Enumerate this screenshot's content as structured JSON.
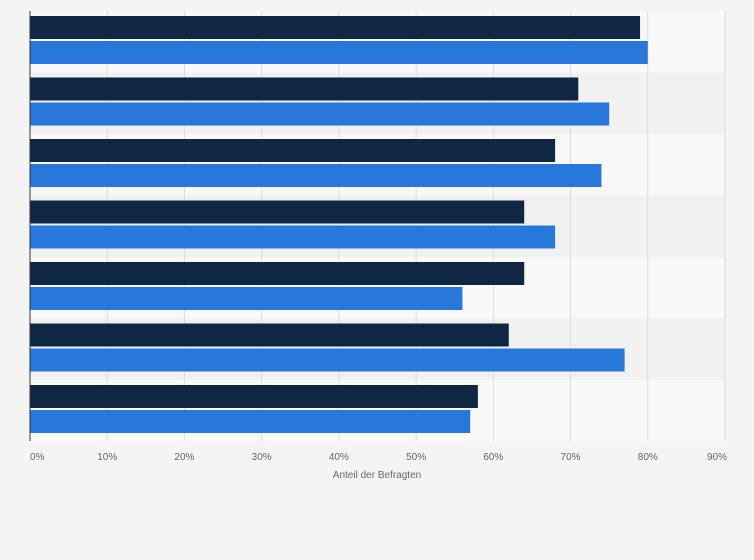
{
  "chart_data": {
    "type": "bar",
    "orientation": "horizontal",
    "categories": [
      "",
      "",
      "",
      "",
      "",
      "",
      ""
    ],
    "series": [
      {
        "values": [
          79,
          71,
          68,
          64,
          64,
          62,
          58
        ],
        "color": "#0f2742"
      },
      {
        "values": [
          80,
          75,
          74,
          68,
          56,
          77,
          57
        ],
        "color": "#2878dc"
      }
    ],
    "xlabel": "Anteil der Befragten",
    "ylabel": "",
    "xlim": [
      0,
      90
    ],
    "x_ticks": [
      "0%",
      "10%",
      "20%",
      "30%",
      "40%",
      "50%",
      "60%",
      "70%",
      "80%",
      "90%"
    ],
    "grid": true,
    "legend": "none",
    "colors": {
      "background": "#f4f4f4",
      "band_light": "#f8f8f8",
      "band_dark": "#f1f1f1",
      "gridline": "#dddddd",
      "axis": "#333333"
    }
  }
}
